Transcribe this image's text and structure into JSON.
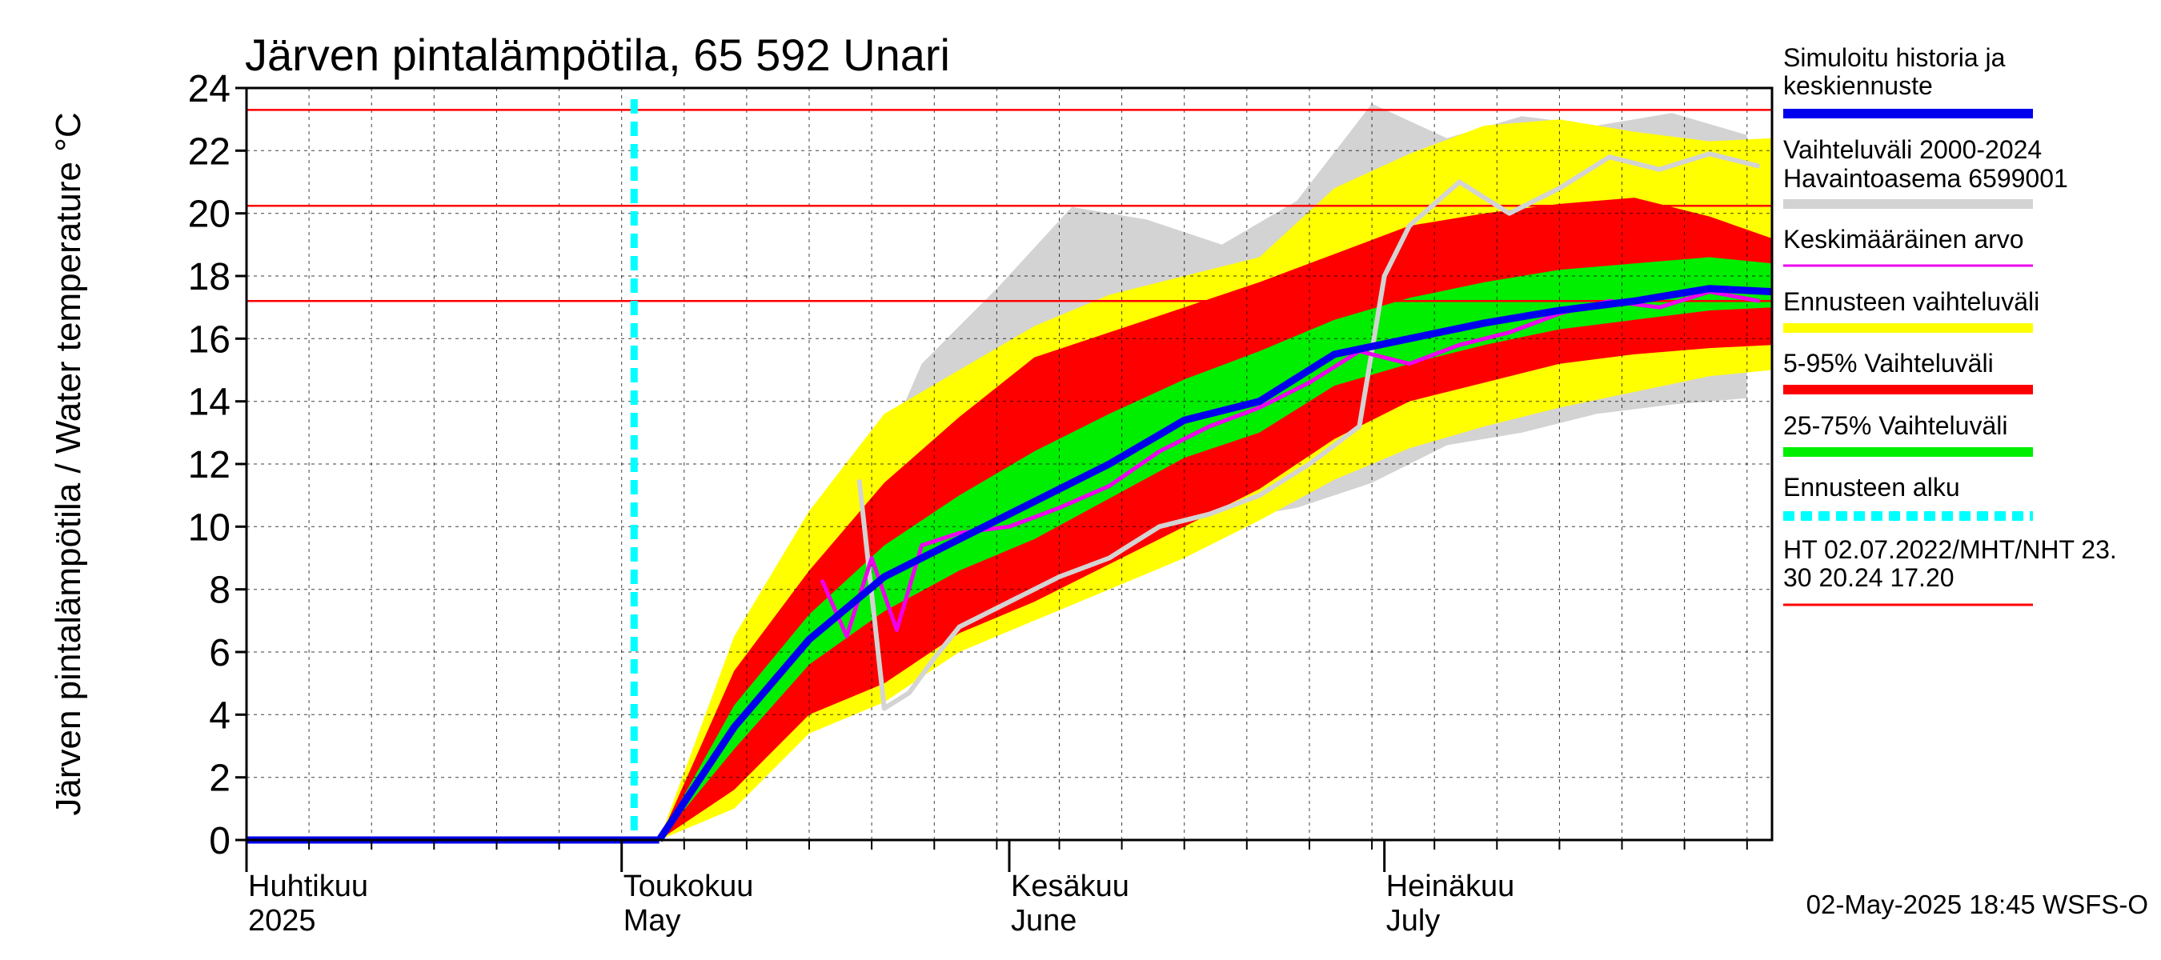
{
  "chart_data": {
    "type": "area",
    "title": "Järven pintalämpötila, 65 592 Unari",
    "ylabel": "Järven pintalämpötila / Water temperature °C",
    "ylim": [
      0,
      24
    ],
    "xlim": [
      "2025-04-01",
      "2025-08-01"
    ],
    "y_ticks": [
      "0",
      "2",
      "4",
      "6",
      "8",
      "10",
      "12",
      "14",
      "16",
      "18",
      "20",
      "22",
      "24"
    ],
    "x_month_labels": [
      {
        "date": "2025-04-01",
        "fi": "Huhtikuu",
        "en": "2025"
      },
      {
        "date": "2025-05-01",
        "fi": "Toukokuu",
        "en": "May"
      },
      {
        "date": "2025-06-01",
        "fi": "Kesäkuu",
        "en": "June"
      },
      {
        "date": "2025-07-01",
        "fi": "Heinäkuu",
        "en": "July"
      }
    ],
    "grid": true,
    "legend_position": "right",
    "forecast_start": "2025-05-02",
    "reference_lines": [
      {
        "label": "HT",
        "value": 23.3
      },
      {
        "label": "MHT",
        "value": 20.24
      },
      {
        "label": "NHT",
        "value": 17.2
      }
    ],
    "colors": {
      "simulated": "#0000ee",
      "history_range": "#d3d3d3",
      "mean": "#ee00ee",
      "forecast_range": "#ffff00",
      "p5_95": "#ff0000",
      "p25_75": "#00ee00",
      "forecast_start": "#00ffff",
      "reference": "#ff0000"
    },
    "legend": [
      {
        "label": "Simuloitu historia ja keskiennuste",
        "color": "#0000ee",
        "style": "line"
      },
      {
        "label": "Vaihteluväli 2000-2024 Havaintoasema 6599001",
        "color": "#d3d3d3",
        "style": "line"
      },
      {
        "label": "Keskimääräinen arvo",
        "color": "#ee00ee",
        "style": "thin"
      },
      {
        "label": "Ennusteen vaihteluväli",
        "color": "#ffff00",
        "style": "line"
      },
      {
        "label": "5-95% Vaihteluväli",
        "color": "#ff0000",
        "style": "line"
      },
      {
        "label": "25-75% Vaihteluväli",
        "color": "#00ee00",
        "style": "line"
      },
      {
        "label": "Ennusteen alku",
        "color": "#00ffff",
        "style": "dashed"
      },
      {
        "label": "HT 02.07.2022/MHT/NHT 23.30 20.24 17.20",
        "color": "#ff0000",
        "style": "thin"
      }
    ],
    "legend_lines": [
      [
        "Simuloitu historia ja",
        "keskiennuste"
      ],
      [
        "Vaihteluväli 2000-2024",
        " Havaintoasema 6599001"
      ],
      [
        "Keskimääräinen arvo"
      ],
      [
        "Ennusteen vaihteluväli"
      ],
      [
        "5-95% Vaihteluväli"
      ],
      [
        "25-75% Vaihteluväli"
      ],
      [
        "Ennusteen alku"
      ],
      [
        "HT 02.07.2022/MHT/NHT 23.",
        "30 20.24 17.20"
      ]
    ],
    "forecast_series": {
      "x": [
        "2025-05-04",
        "2025-05-10",
        "2025-05-16",
        "2025-05-22",
        "2025-05-28",
        "2025-06-03",
        "2025-06-09",
        "2025-06-15",
        "2025-06-21",
        "2025-06-27",
        "2025-07-03",
        "2025-07-09",
        "2025-07-15",
        "2025-07-21",
        "2025-07-27",
        "2025-08-01"
      ],
      "mean": [
        0.0,
        3.6,
        6.4,
        8.4,
        9.6,
        10.8,
        12.0,
        13.4,
        14.0,
        15.5,
        16.0,
        16.5,
        16.9,
        17.2,
        17.6,
        17.5
      ],
      "p25": [
        0.0,
        2.9,
        5.6,
        7.3,
        8.6,
        9.6,
        10.9,
        12.2,
        13.0,
        14.5,
        15.2,
        15.8,
        16.3,
        16.6,
        16.9,
        17.0
      ],
      "p75": [
        0.0,
        4.3,
        7.2,
        9.4,
        11.0,
        12.4,
        13.6,
        14.7,
        15.6,
        16.6,
        17.3,
        17.8,
        18.2,
        18.4,
        18.6,
        18.4
      ],
      "p5": [
        0.0,
        1.6,
        4.0,
        5.0,
        6.6,
        7.6,
        8.8,
        10.0,
        11.2,
        12.8,
        14.0,
        14.6,
        15.2,
        15.5,
        15.7,
        15.8
      ],
      "p95": [
        0.0,
        5.4,
        8.6,
        11.4,
        13.5,
        15.4,
        16.2,
        17.0,
        17.8,
        18.7,
        19.6,
        20.0,
        20.3,
        20.5,
        19.9,
        19.2
      ],
      "min": [
        0.0,
        1.0,
        3.4,
        4.4,
        6.0,
        7.0,
        8.0,
        9.0,
        10.2,
        11.5,
        12.5,
        13.2,
        13.8,
        14.3,
        14.8,
        15.0
      ],
      "max": [
        0.0,
        6.5,
        10.5,
        13.6,
        15.0,
        16.4,
        17.4,
        18.0,
        18.6,
        20.8,
        21.9,
        22.8,
        23.0,
        22.6,
        22.3,
        22.4
      ]
    },
    "simulated_history": {
      "x": [
        "2025-04-01",
        "2025-05-04"
      ],
      "values": [
        0.0,
        0.0
      ]
    },
    "observed_history_range": {
      "x": [
        "2025-05-20",
        "2025-05-25",
        "2025-05-31",
        "2025-06-06",
        "2025-06-12",
        "2025-06-18",
        "2025-06-24",
        "2025-06-30",
        "2025-07-06",
        "2025-07-12",
        "2025-07-18",
        "2025-07-24",
        "2025-07-30"
      ],
      "min": [
        4.2,
        6.0,
        7.4,
        8.8,
        9.6,
        10.2,
        10.6,
        11.4,
        12.6,
        13.0,
        13.6,
        13.9,
        14.1
      ],
      "max": [
        10.6,
        15.2,
        17.6,
        20.2,
        19.8,
        19.0,
        20.4,
        23.5,
        22.4,
        23.1,
        22.8,
        23.2,
        22.5
      ]
    },
    "long_term_mean": {
      "x": [
        "2025-05-17",
        "2025-05-19",
        "2025-05-21",
        "2025-05-23",
        "2025-05-25",
        "2025-05-28",
        "2025-06-01",
        "2025-06-05",
        "2025-06-09",
        "2025-06-13",
        "2025-06-17",
        "2025-06-21",
        "2025-06-25",
        "2025-06-29",
        "2025-07-03",
        "2025-07-07",
        "2025-07-11",
        "2025-07-15",
        "2025-07-19",
        "2025-07-23",
        "2025-07-27",
        "2025-07-31"
      ],
      "values": [
        8.3,
        6.5,
        9.0,
        6.7,
        9.4,
        9.8,
        10.0,
        10.6,
        11.3,
        12.4,
        13.2,
        13.8,
        14.6,
        15.6,
        15.2,
        15.8,
        16.2,
        16.8,
        17.2,
        17.0,
        17.5,
        17.2
      ]
    },
    "observed_year_line": {
      "x": [
        "2025-05-20",
        "2025-05-22",
        "2025-05-24",
        "2025-05-26",
        "2025-05-28",
        "2025-06-01",
        "2025-06-05",
        "2025-06-09",
        "2025-06-13",
        "2025-06-17",
        "2025-06-21",
        "2025-06-25",
        "2025-06-29",
        "2025-07-01",
        "2025-07-03",
        "2025-07-07",
        "2025-07-11",
        "2025-07-15",
        "2025-07-19",
        "2025-07-23",
        "2025-07-27",
        "2025-07-31"
      ],
      "values": [
        11.5,
        4.2,
        4.7,
        5.8,
        6.8,
        7.6,
        8.4,
        9.0,
        10.0,
        10.4,
        11.0,
        12.0,
        13.2,
        18.0,
        19.6,
        21.0,
        20.0,
        20.8,
        21.8,
        21.4,
        21.9,
        21.5
      ]
    },
    "footer": "02-May-2025 18:45 WSFS-O"
  }
}
